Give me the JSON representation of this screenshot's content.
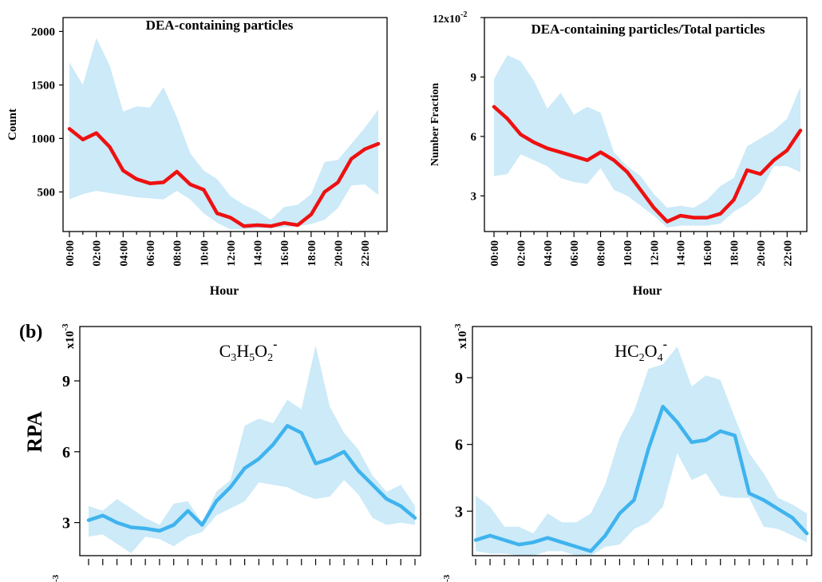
{
  "panel_b_label": "(b)",
  "colors": {
    "red_line": "#ee1111",
    "blue_line": "#3fb3ee",
    "band_fill": "#cceaf8",
    "axis": "#000000"
  },
  "hour_labels": [
    "00:00",
    "02:00",
    "04:00",
    "06:00",
    "08:00",
    "10:00",
    "12:00",
    "14:00",
    "16:00",
    "18:00",
    "20:00",
    "22:00"
  ],
  "chart_data": [
    {
      "type": "line",
      "title": "DEA-containing particles",
      "xlabel": "Hour",
      "ylabel": "Count",
      "x": [
        0,
        1,
        2,
        3,
        4,
        5,
        6,
        7,
        8,
        9,
        10,
        11,
        12,
        13,
        14,
        15,
        16,
        17,
        18,
        19,
        20,
        21,
        22,
        23
      ],
      "ylim": [
        130,
        2130
      ],
      "yticks": [
        500,
        1000,
        1500,
        2000
      ],
      "ytick_labels": [
        "500",
        "1000",
        "1500",
        "2000"
      ],
      "scale_label": "",
      "series": [
        {
          "role": "mean",
          "values": [
            1090,
            990,
            1050,
            920,
            700,
            620,
            580,
            590,
            690,
            570,
            520,
            300,
            260,
            180,
            190,
            180,
            210,
            190,
            290,
            500,
            590,
            810,
            900,
            950
          ]
        },
        {
          "role": "upper",
          "values": [
            1710,
            1500,
            1940,
            1680,
            1250,
            1300,
            1290,
            1480,
            1200,
            860,
            700,
            620,
            460,
            380,
            320,
            240,
            360,
            380,
            480,
            780,
            800,
            950,
            1100,
            1270
          ]
        },
        {
          "role": "lower",
          "values": [
            430,
            480,
            510,
            490,
            470,
            450,
            440,
            430,
            510,
            430,
            300,
            210,
            150,
            150,
            160,
            160,
            170,
            180,
            200,
            240,
            350,
            560,
            570,
            470
          ]
        }
      ]
    },
    {
      "type": "line",
      "title": "DEA-containing particles/Total particles",
      "xlabel": "Hour",
      "ylabel": "Number Fraction",
      "x": [
        0,
        1,
        2,
        3,
        4,
        5,
        6,
        7,
        8,
        9,
        10,
        11,
        12,
        13,
        14,
        15,
        16,
        17,
        18,
        19,
        20,
        21,
        22,
        23
      ],
      "ylim": [
        1.2,
        12
      ],
      "yticks": [
        3,
        6,
        9,
        12
      ],
      "ytick_labels": [
        "3",
        "6",
        "9",
        ""
      ],
      "scale_label": "12x10",
      "scale_exponent": "-2",
      "series": [
        {
          "role": "mean",
          "values": [
            7.5,
            6.9,
            6.1,
            5.7,
            5.4,
            5.2,
            5.0,
            4.8,
            5.2,
            4.8,
            4.2,
            3.3,
            2.4,
            1.7,
            2.0,
            1.9,
            1.9,
            2.1,
            2.8,
            4.3,
            4.1,
            4.8,
            5.3,
            6.3
          ]
        },
        {
          "role": "upper",
          "values": [
            8.9,
            10.1,
            9.8,
            8.8,
            7.4,
            8.2,
            7.1,
            7.5,
            7.2,
            5.2,
            4.5,
            4.0,
            3.1,
            2.4,
            2.5,
            2.4,
            2.8,
            3.5,
            3.9,
            5.5,
            5.9,
            6.3,
            6.9,
            8.5
          ]
        },
        {
          "role": "lower",
          "values": [
            4.0,
            4.1,
            5.1,
            4.8,
            4.5,
            3.9,
            3.7,
            3.6,
            4.4,
            3.3,
            3.0,
            2.5,
            2.0,
            1.4,
            1.5,
            1.5,
            1.5,
            1.6,
            2.2,
            2.6,
            3.2,
            4.5,
            4.5,
            4.2
          ]
        }
      ]
    },
    {
      "type": "line",
      "title": "C3H5O2-",
      "title_parts": {
        "c": "C",
        "n3": "3",
        "h": "H",
        "n5": "5",
        "o": "O",
        "n2": "2",
        "charge": "-"
      },
      "xlabel": "",
      "ylabel": "RPA",
      "x": [
        0,
        1,
        2,
        3,
        4,
        5,
        6,
        7,
        8,
        9,
        10,
        11,
        12,
        13,
        14,
        15,
        16,
        17,
        18,
        19,
        20,
        21,
        22,
        23
      ],
      "ylim": [
        1.6,
        11.3
      ],
      "yticks": [
        3,
        6,
        9
      ],
      "ytick_labels": [
        "3",
        "6",
        "9"
      ],
      "scale_label": "x10",
      "scale_exponent": "-3",
      "series": [
        {
          "role": "mean",
          "values": [
            3.1,
            3.3,
            3.0,
            2.8,
            2.75,
            2.65,
            2.9,
            3.5,
            2.9,
            3.9,
            4.5,
            5.3,
            5.7,
            6.3,
            7.1,
            6.8,
            5.5,
            5.7,
            6.0,
            5.2,
            4.6,
            4.0,
            3.7,
            3.2
          ]
        },
        {
          "role": "upper",
          "values": [
            3.7,
            3.5,
            4.0,
            3.6,
            3.2,
            2.9,
            3.8,
            3.9,
            3.0,
            4.3,
            4.8,
            7.1,
            7.4,
            7.2,
            8.2,
            7.8,
            10.5,
            7.9,
            6.8,
            6.1,
            5.0,
            4.3,
            4.6,
            3.7
          ]
        },
        {
          "role": "lower",
          "values": [
            2.4,
            2.5,
            2.1,
            1.7,
            2.4,
            2.3,
            2.0,
            2.4,
            2.6,
            3.3,
            3.6,
            3.9,
            4.7,
            4.6,
            4.5,
            4.2,
            4.0,
            4.1,
            4.8,
            4.2,
            3.2,
            2.9,
            3.0,
            2.9
          ]
        }
      ]
    },
    {
      "type": "line",
      "title": "HC2O4-",
      "title_parts": {
        "hc": "HC",
        "n2": "2",
        "o": "O",
        "n4": "4",
        "charge": "-"
      },
      "xlabel": "",
      "ylabel": "",
      "x": [
        0,
        1,
        2,
        3,
        4,
        5,
        6,
        7,
        8,
        9,
        10,
        11,
        12,
        13,
        14,
        15,
        16,
        17,
        18,
        19,
        20,
        21,
        22,
        23
      ],
      "ylim": [
        1.0,
        11.3
      ],
      "yticks": [
        3,
        6,
        9
      ],
      "ytick_labels": [
        "3",
        "6",
        "9"
      ],
      "scale_label": "x10",
      "scale_exponent": "-3",
      "series": [
        {
          "role": "mean",
          "values": [
            1.7,
            1.9,
            1.7,
            1.5,
            1.6,
            1.8,
            1.6,
            1.4,
            1.2,
            1.9,
            2.9,
            3.5,
            5.8,
            7.7,
            7.0,
            6.1,
            6.2,
            6.6,
            6.4,
            3.8,
            3.5,
            3.1,
            2.7,
            2.0
          ]
        },
        {
          "role": "upper",
          "values": [
            3.7,
            3.2,
            2.3,
            2.3,
            2.0,
            2.9,
            2.5,
            2.5,
            2.9,
            4.2,
            6.3,
            7.5,
            9.4,
            9.6,
            10.4,
            8.6,
            9.1,
            8.9,
            7.2,
            5.6,
            4.7,
            3.6,
            3.3,
            2.9
          ]
        },
        {
          "role": "lower",
          "values": [
            1.2,
            1.1,
            1.1,
            1.0,
            1.0,
            1.2,
            1.2,
            1.0,
            1.0,
            1.4,
            1.5,
            2.2,
            2.5,
            3.2,
            5.6,
            4.4,
            4.7,
            3.7,
            3.6,
            3.6,
            2.3,
            2.2,
            1.9,
            1.6
          ]
        }
      ]
    }
  ]
}
